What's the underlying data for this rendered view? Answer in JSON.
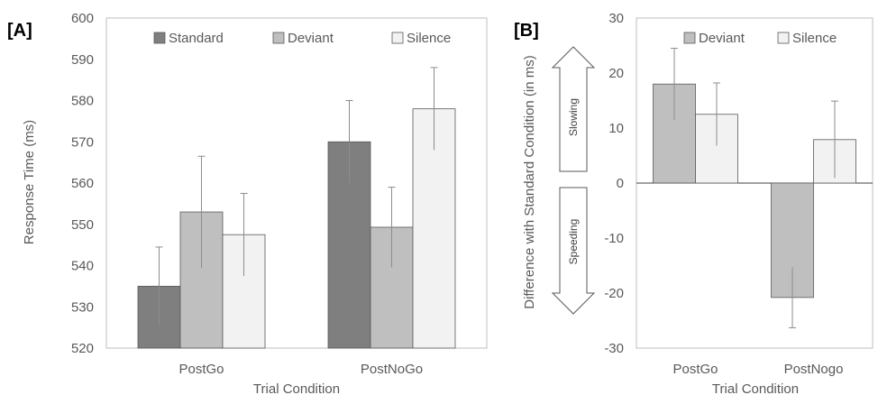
{
  "colors": {
    "standard": "#7f7f7f",
    "deviant": "#bfbfbf",
    "silence": "#f2f2f2",
    "bar_stroke": "#595959",
    "error_bar": "#8c8c8c",
    "axis": "#bfbfbf"
  },
  "chart_data": [
    {
      "panel_label": "[A]",
      "type": "bar",
      "title": "",
      "xlabel": "Trial Condition",
      "ylabel": "Response Time (ms)",
      "ylim": [
        520,
        600
      ],
      "yticks": [
        520,
        530,
        540,
        550,
        560,
        570,
        580,
        590,
        600
      ],
      "categories": [
        "PostGo",
        "PostNoGo"
      ],
      "legend_position": "top",
      "series": [
        {
          "name": "Standard",
          "color_key": "standard",
          "values": [
            535,
            570
          ],
          "errors": [
            9.5,
            10
          ]
        },
        {
          "name": "Deviant",
          "color_key": "deviant",
          "values": [
            553,
            549.3
          ],
          "errors": [
            13.5,
            9.7
          ]
        },
        {
          "name": "Silence",
          "color_key": "silence",
          "values": [
            547.5,
            578
          ],
          "errors": [
            10,
            10
          ]
        }
      ]
    },
    {
      "panel_label": "[B]",
      "type": "bar",
      "title": "",
      "xlabel": "Trial Condition",
      "ylabel": "Difference with Standard Condition (in ms)",
      "ylim": [
        -30,
        30
      ],
      "yticks": [
        -30,
        -20,
        -10,
        0,
        10,
        20,
        30
      ],
      "categories": [
        "PostGo",
        "PostNogo"
      ],
      "legend_position": "top",
      "arrow_labels": {
        "up": "Slowing",
        "down": "Speeding"
      },
      "series": [
        {
          "name": "Deviant",
          "color_key": "deviant",
          "values": [
            18,
            -20.8
          ],
          "errors": [
            6.5,
            5.5
          ]
        },
        {
          "name": "Silence",
          "color_key": "silence",
          "values": [
            12.5,
            7.9
          ],
          "errors": [
            5.7,
            7
          ]
        }
      ]
    }
  ]
}
